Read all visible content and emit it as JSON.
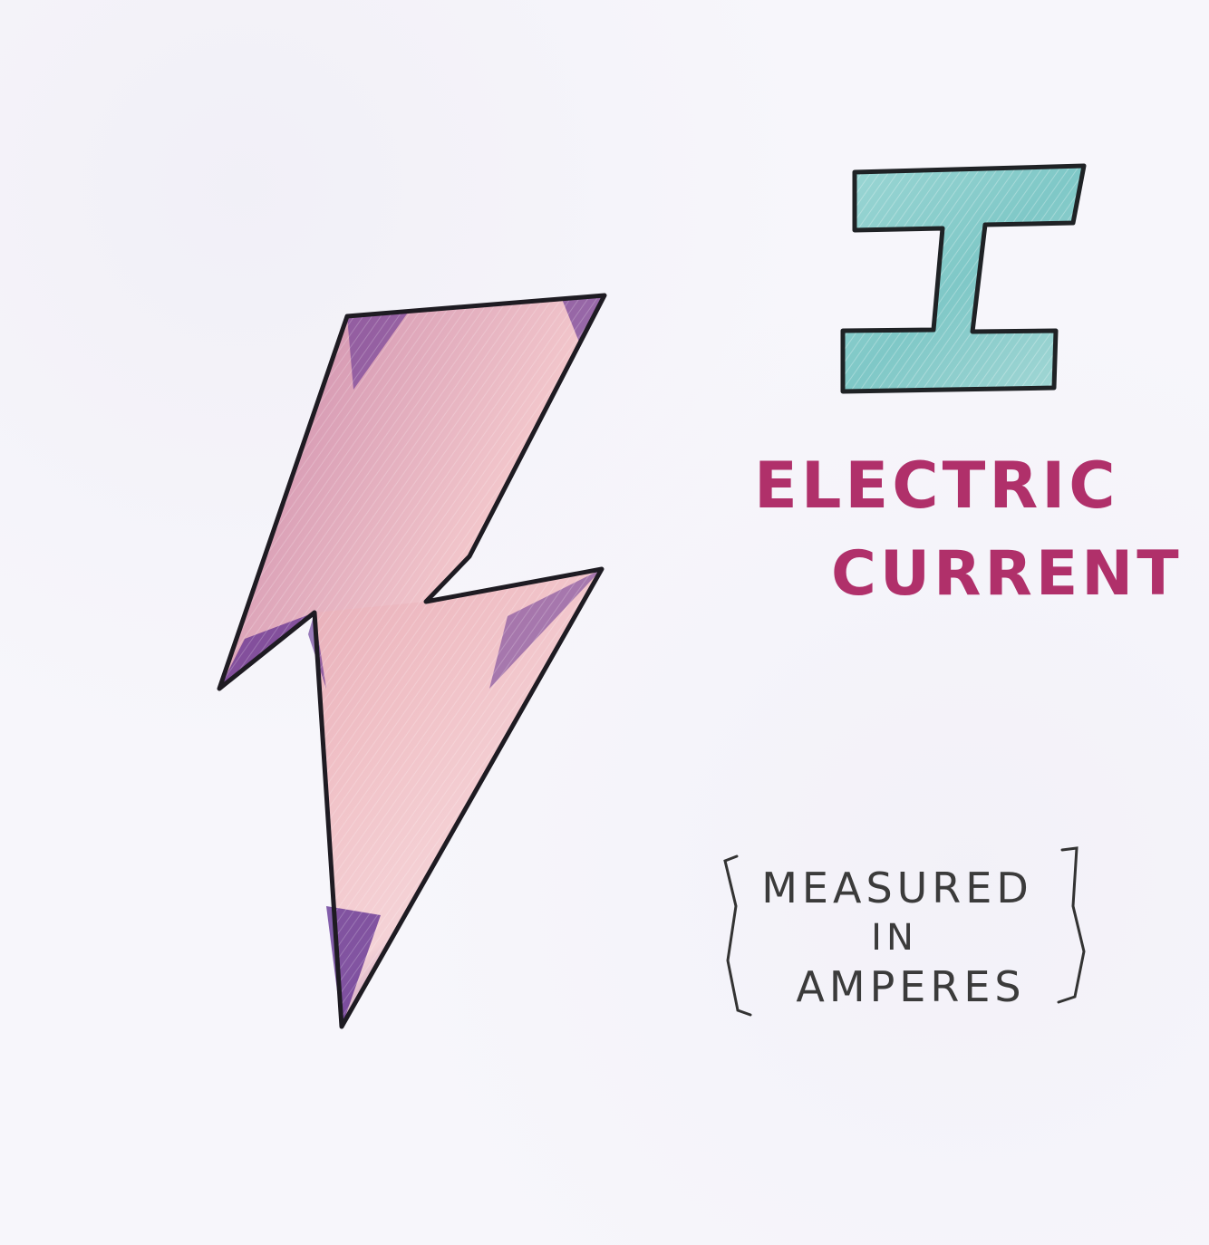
{
  "symbol": {
    "letter": "I",
    "color": "#8ecfcf"
  },
  "label": {
    "line1": "ELECTRIC",
    "line2": "CURRENT",
    "color": "#b0306a"
  },
  "unit_note": {
    "line1": "MEASURED",
    "line2": "IN",
    "line3": "AMPERES"
  },
  "bolt": {
    "icon": "lightning-bolt-icon",
    "fill": "#f2c8cc",
    "shade": "#5b2a8f"
  }
}
